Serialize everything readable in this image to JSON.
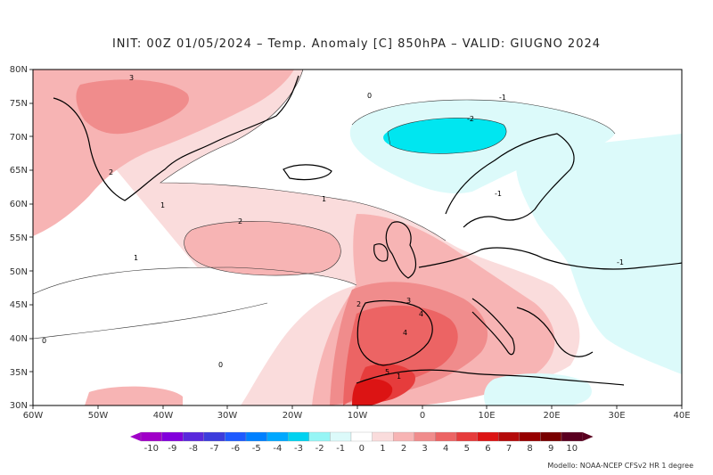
{
  "title": "INIT: 00Z 01/05/2024 – Temp. Anomaly [C] 850hPA – VALID: GIUGNO 2024",
  "credit": "Modello: NOAA-NCEP CFSv2 HR 1 degree",
  "lat_labels": [
    "80N",
    "75N",
    "70N",
    "65N",
    "60N",
    "55N",
    "50N",
    "45N",
    "40N",
    "35N",
    "30N"
  ],
  "lon_labels": [
    "60W",
    "50W",
    "40W",
    "30W",
    "20W",
    "10W",
    "0",
    "10E",
    "20E",
    "30E",
    "40E"
  ],
  "contour_labels": [
    "3",
    "2",
    "1",
    "0",
    "-1",
    "-2",
    "2",
    "1",
    "1",
    "0",
    "0",
    "1",
    "2",
    "3",
    "4",
    "4",
    "5",
    "-1",
    "-1"
  ],
  "legend": {
    "labels": [
      "-10",
      "-9",
      "-8",
      "-7",
      "-6",
      "-5",
      "-4",
      "-3",
      "-2",
      "-1",
      "0",
      "1",
      "2",
      "3",
      "4",
      "5",
      "6",
      "7",
      "8",
      "9",
      "10"
    ],
    "colors": [
      "#a000c8",
      "#8200dc",
      "#5a28dc",
      "#3c3cdc",
      "#1e5aff",
      "#0080ff",
      "#00a8ff",
      "#00d2f0",
      "#96f5f5",
      "#dcfafa",
      "#ffffff",
      "#fadcdc",
      "#f7b4b4",
      "#f08c8c",
      "#ec6464",
      "#e63c3c",
      "#dc1414",
      "#b40a0a",
      "#960000",
      "#780000",
      "#5a0020"
    ]
  }
}
